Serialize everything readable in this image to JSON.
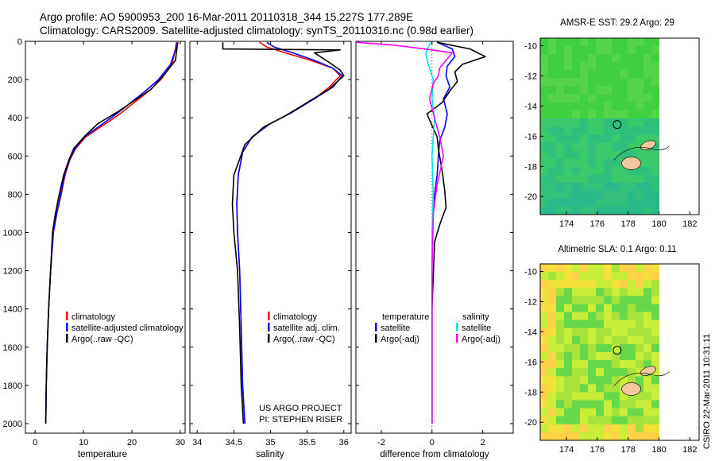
{
  "header": {
    "line1": "Argo profile: AO 5900953_200 16-Mar-2011 20110318_344 15.227S 177.289E",
    "line2": "Climatology: CARS2009. Satellite-adjusted climatology: synTS_20110316.nc (0.98d earlier)"
  },
  "colors": {
    "climatology": "#ff0000",
    "satellite": "#0000ff",
    "argo": "#000000",
    "sat_salinity": "#00e5e5",
    "argo_salinity": "#ff00ff",
    "sst_land": "#f5c9a0"
  },
  "chart_data": [
    {
      "type": "line",
      "id": "temperature",
      "xlabel": "temperature",
      "xlim": [
        -2,
        31
      ],
      "xticks": [
        0,
        10,
        20,
        30
      ],
      "ylim": [
        0,
        2050
      ],
      "yticks": [
        0,
        200,
        400,
        600,
        800,
        1000,
        1200,
        1400,
        1600,
        1800,
        2000
      ],
      "legend": [
        "climatology",
        "satellite-adjusted climatology",
        "Argo(..raw -QC)"
      ],
      "series": [
        {
          "name": "climatology",
          "color": "climatology",
          "x": [
            29.2,
            29.0,
            28.3,
            26,
            23.5,
            20.5,
            17.5,
            14,
            10.5,
            8.4,
            7.2,
            6.2,
            5.4,
            4.5,
            3.8,
            3.2,
            2.8,
            2.5,
            2.3,
            2.2
          ],
          "y": [
            5,
            40,
            120,
            200,
            260,
            320,
            380,
            440,
            500,
            560,
            620,
            700,
            800,
            900,
            1000,
            1200,
            1400,
            1600,
            1800,
            2000
          ]
        },
        {
          "name": "satellite-adjusted climatology",
          "color": "satellite",
          "x": [
            29.4,
            29.1,
            28.0,
            25.5,
            22.8,
            19.8,
            16.8,
            13.5,
            10.2,
            8.3,
            7.1,
            6.1,
            5.3,
            4.45,
            3.75,
            3.2,
            2.8,
            2.5,
            2.3,
            2.2
          ],
          "y": [
            5,
            40,
            120,
            200,
            260,
            320,
            380,
            440,
            500,
            560,
            620,
            700,
            800,
            900,
            1000,
            1200,
            1400,
            1600,
            1800,
            2000
          ]
        },
        {
          "name": "Argo(..raw -QC)",
          "color": "argo",
          "x": [
            29.5,
            29.3,
            29.0,
            26.5,
            24.0,
            20.5,
            17.0,
            13.0,
            10.5,
            8.0,
            7.0,
            5.9,
            5.0,
            4.2,
            3.6,
            3.2,
            2.8,
            2.5,
            2.3,
            2.2
          ],
          "y": [
            5,
            40,
            100,
            180,
            250,
            310,
            370,
            430,
            490,
            560,
            620,
            700,
            800,
            900,
            1000,
            1200,
            1400,
            1600,
            1800,
            2000
          ]
        }
      ]
    },
    {
      "type": "line",
      "id": "salinity",
      "xlabel": "salinity",
      "xlim": [
        33.9,
        36.1
      ],
      "xticks": [
        34,
        34.5,
        35,
        35.5,
        36
      ],
      "ylim": [
        0,
        2050
      ],
      "legend": [
        "climatology",
        "satellite adj. clim.",
        "Argo(..raw -QC)"
      ],
      "annotation": [
        "US ARGO PROJECT",
        "PI: STEPHEN RISER"
      ],
      "series": [
        {
          "name": "climatology",
          "color": "climatology",
          "x": [
            34.85,
            34.95,
            35.2,
            35.55,
            35.85,
            35.95,
            35.8,
            35.6,
            35.3,
            35.0,
            34.75,
            34.62,
            34.56,
            34.54,
            34.55,
            34.58,
            34.6,
            34.62,
            34.65
          ],
          "y": [
            5,
            30,
            60,
            100,
            140,
            180,
            240,
            300,
            370,
            430,
            500,
            580,
            700,
            850,
            1000,
            1200,
            1500,
            1800,
            2000
          ]
        },
        {
          "name": "satellite adj. clim.",
          "color": "satellite",
          "x": [
            34.95,
            35.05,
            35.3,
            35.6,
            35.85,
            35.98,
            35.85,
            35.6,
            35.3,
            35.0,
            34.75,
            34.62,
            34.56,
            34.54,
            34.55,
            34.58,
            34.6,
            34.62,
            34.65
          ],
          "y": [
            5,
            30,
            60,
            100,
            140,
            180,
            240,
            300,
            370,
            430,
            500,
            580,
            700,
            850,
            1000,
            1200,
            1500,
            1800,
            2000
          ]
        },
        {
          "name": "Argo(..raw -QC)",
          "color": "argo",
          "x": [
            34.35,
            34.35,
            35.95,
            35.6,
            35.8,
            35.95,
            36.0,
            35.8,
            35.5,
            35.2,
            34.9,
            34.65,
            34.5,
            34.48,
            34.5,
            34.55,
            34.58,
            34.6,
            34.63
          ],
          "y": [
            5,
            40,
            45,
            60,
            110,
            150,
            180,
            250,
            320,
            390,
            450,
            540,
            700,
            850,
            1000,
            1200,
            1500,
            1800,
            2000
          ]
        }
      ]
    },
    {
      "type": "line",
      "id": "difference",
      "xlabel": "difference from climatology",
      "xlim": [
        -3,
        3.2
      ],
      "xticks": [
        -2,
        0,
        2
      ],
      "ylim": [
        0,
        2050
      ],
      "legend_titles": [
        "temperature",
        "salinity"
      ],
      "legend": [
        "satellite",
        "Argo(-adj)",
        "satellite",
        "Argo(-adj)"
      ],
      "series": [
        {
          "name": "temperature satellite",
          "color": "satellite",
          "x": [
            0.2,
            0.8,
            0.9,
            0.6,
            0.55,
            0.7,
            0.45,
            0.6,
            0.5,
            0.3,
            0.25,
            0.2,
            0.1,
            0.05,
            0,
            0,
            0,
            0
          ],
          "y": [
            5,
            40,
            80,
            130,
            180,
            240,
            300,
            380,
            450,
            520,
            600,
            700,
            800,
            900,
            1000,
            1400,
            1800,
            2000
          ]
        },
        {
          "name": "temperature Argo(-adj)",
          "color": "argo",
          "x": [
            0.2,
            1.5,
            2.1,
            1.2,
            0.9,
            1.0,
            0.7,
            0.4,
            -0.2,
            0.0,
            0.2,
            0.25,
            0.4,
            0.5,
            0.55,
            0.3,
            0.1,
            0,
            0,
            0
          ],
          "y": [
            5,
            40,
            80,
            120,
            160,
            210,
            260,
            320,
            380,
            440,
            500,
            560,
            680,
            780,
            870,
            960,
            1050,
            1400,
            1800,
            2000
          ]
        },
        {
          "name": "salinity satellite",
          "color": "sat_salinity",
          "x": [
            -0.05,
            -0.25,
            -0.15,
            0.05,
            0.0,
            0.1,
            0.0,
            0.05,
            0.0,
            0.0,
            0.0
          ],
          "y": [
            5,
            60,
            120,
            200,
            300,
            400,
            600,
            800,
            1000,
            1500,
            2000
          ]
        },
        {
          "name": "salinity Argo(-adj)",
          "color": "argo_salinity",
          "x": [
            -3.0,
            -1.5,
            -0.3,
            0.8,
            0.3,
            0.25,
            0.05,
            -0.1,
            0.1,
            0.3,
            0.45,
            0.2,
            0.05,
            0,
            0
          ],
          "y": [
            5,
            20,
            40,
            60,
            140,
            180,
            220,
            300,
            400,
            500,
            600,
            750,
            900,
            1200,
            2000
          ]
        }
      ]
    },
    {
      "type": "heatmap",
      "id": "sst_map",
      "title": "AMSR-E SST: 29.2  Argo: 29",
      "xlim": [
        172.3,
        182.6
      ],
      "ylim": [
        -21.2,
        -9.5
      ],
      "xticks": [
        174,
        176,
        178,
        180,
        182
      ],
      "yticks": [
        -10,
        -12,
        -14,
        -16,
        -18,
        -20
      ],
      "float_position": {
        "lon": 177.289,
        "lat": -15.227
      }
    },
    {
      "type": "heatmap",
      "id": "sla_map",
      "title": "Altimetric SLA: 0.1  Argo: 0.11",
      "xlim": [
        172.3,
        182.6
      ],
      "ylim": [
        -21.2,
        -9.5
      ],
      "xticks": [
        174,
        176,
        178,
        180,
        182
      ],
      "yticks": [
        -10,
        -12,
        -14,
        -16,
        -18,
        -20
      ],
      "float_position": {
        "lon": 177.289,
        "lat": -15.227
      }
    }
  ],
  "footer": {
    "stamp": "CSIRO 22-Mar-2011 10:31:11"
  }
}
